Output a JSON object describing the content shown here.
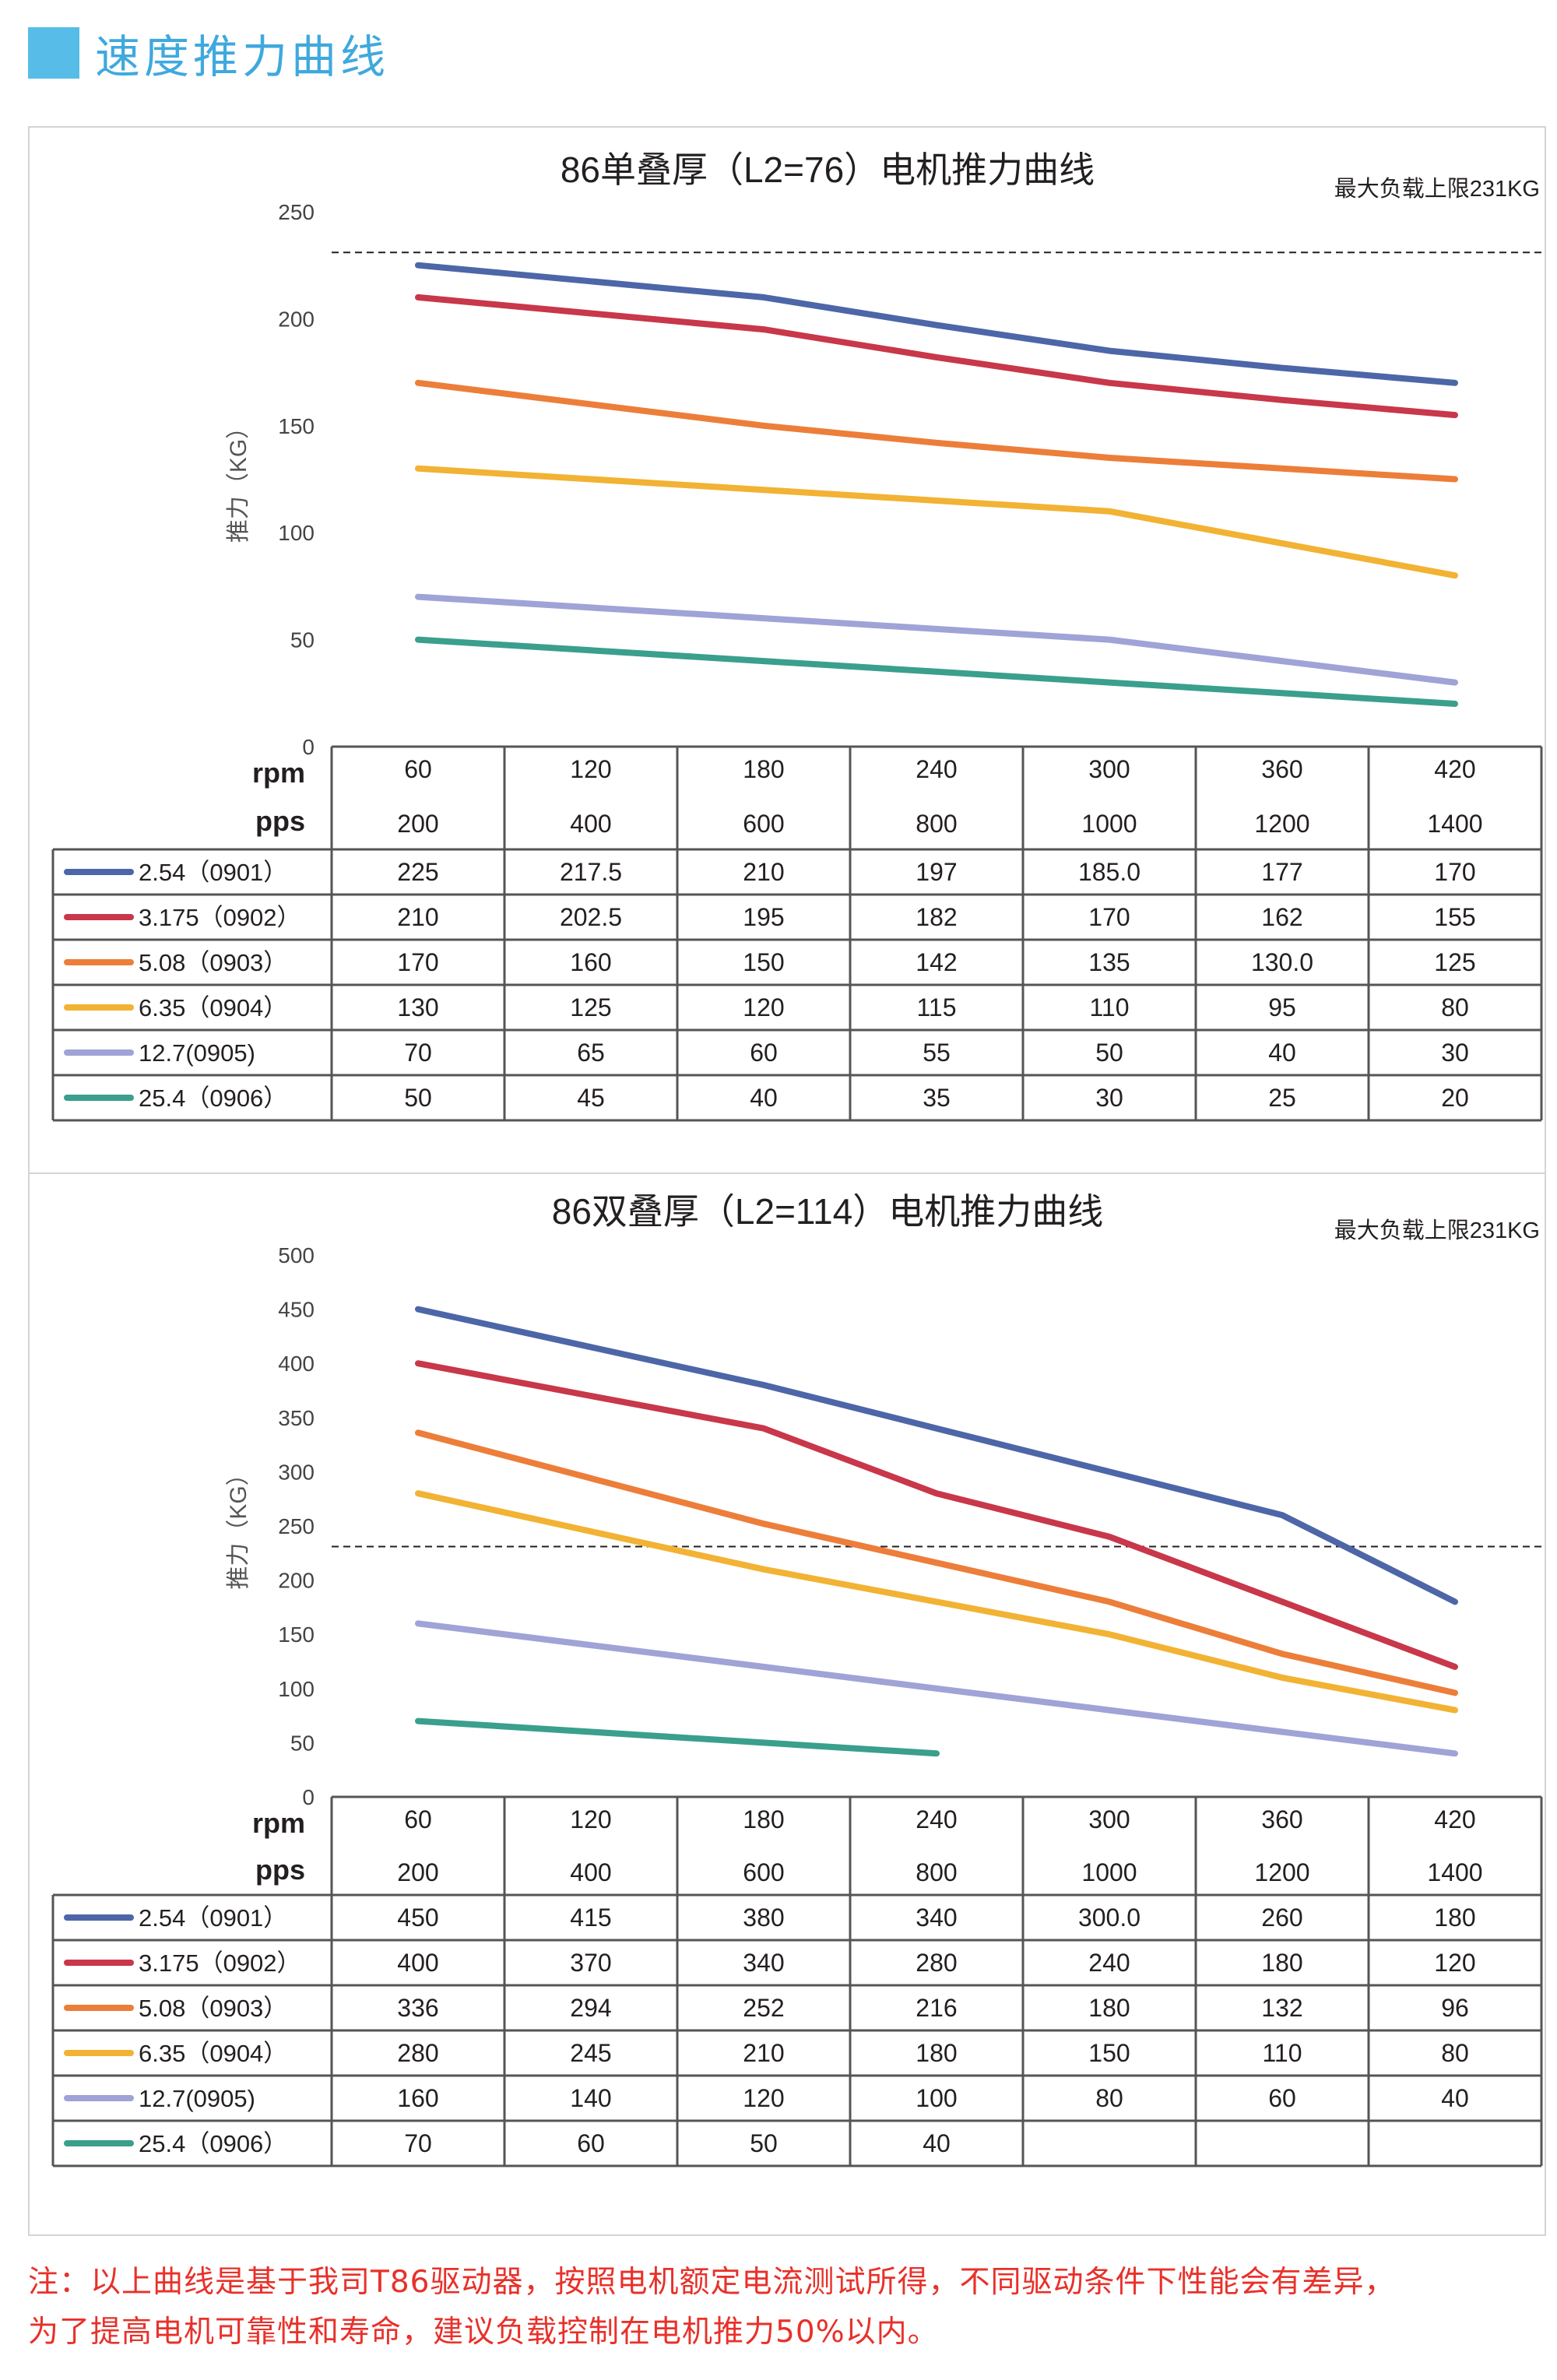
{
  "section_title": "速度推力曲线",
  "colors": {
    "header_accent": "#57bde8",
    "header_text": "#3fa9dd",
    "note_text": "#e8312a",
    "series": [
      "#4d66a8",
      "#c8374a",
      "#ec7e3a",
      "#f2b233",
      "#9fa3d6",
      "#3a9f8c"
    ]
  },
  "chart_data": [
    {
      "type": "line",
      "title": "86单叠厚（L2=76）电机推力曲线",
      "max_load_label": "最大负载上限231KG",
      "max_load": 231,
      "ylabel": "推力（KG）",
      "ylim": [
        0,
        250
      ],
      "yticks": [
        0,
        50,
        100,
        150,
        200,
        250
      ],
      "row_label_rpm": "rpm",
      "row_label_pps": "pps",
      "rpm": [
        "60",
        "120",
        "180",
        "240",
        "300",
        "360",
        "420"
      ],
      "pps": [
        "200",
        "400",
        "600",
        "800",
        "1000",
        "1200",
        "1400"
      ],
      "legend_position": "table-left",
      "series": [
        {
          "name": "2.54（0901）",
          "values": [
            225,
            217.5,
            210,
            197,
            185.0,
            177,
            170
          ],
          "labels": [
            "225",
            "217.5",
            "210",
            "197",
            "185.0",
            "177",
            "170"
          ]
        },
        {
          "name": "3.175（0902）",
          "values": [
            210,
            202.5,
            195,
            182,
            170,
            162,
            155
          ],
          "labels": [
            "210",
            "202.5",
            "195",
            "182",
            "170",
            "162",
            "155"
          ]
        },
        {
          "name": "5.08（0903）",
          "values": [
            170,
            160,
            150,
            142,
            135,
            130.0,
            125
          ],
          "labels": [
            "170",
            "160",
            "150",
            "142",
            "135",
            "130.0",
            "125"
          ]
        },
        {
          "name": "6.35（0904）",
          "values": [
            130,
            125,
            120,
            115,
            110,
            95,
            80
          ],
          "labels": [
            "130",
            "125",
            "120",
            "115",
            "110",
            "95",
            "80"
          ]
        },
        {
          "name": "12.7(0905)",
          "values": [
            70,
            65,
            60,
            55,
            50,
            40,
            30
          ],
          "labels": [
            "70",
            "65",
            "60",
            "55",
            "50",
            "40",
            "30"
          ]
        },
        {
          "name": "25.4（0906）",
          "values": [
            50,
            45,
            40,
            35,
            30,
            25,
            20
          ],
          "labels": [
            "50",
            "45",
            "40",
            "35",
            "30",
            "25",
            "20"
          ]
        }
      ]
    },
    {
      "type": "line",
      "title": "86双叠厚（L2=114）电机推力曲线",
      "max_load_label": "最大负载上限231KG",
      "max_load": 231,
      "ylabel": "推力（KG）",
      "ylim": [
        0,
        500
      ],
      "yticks": [
        0,
        50,
        100,
        150,
        200,
        250,
        300,
        350,
        400,
        450,
        500
      ],
      "row_label_rpm": "rpm",
      "row_label_pps": "pps",
      "rpm": [
        "60",
        "120",
        "180",
        "240",
        "300",
        "360",
        "420"
      ],
      "pps": [
        "200",
        "400",
        "600",
        "800",
        "1000",
        "1200",
        "1400"
      ],
      "legend_position": "table-left",
      "series": [
        {
          "name": "2.54（0901）",
          "values": [
            450,
            415,
            380,
            340,
            300.0,
            260,
            180
          ],
          "labels": [
            "450",
            "415",
            "380",
            "340",
            "300.0",
            "260",
            "180"
          ]
        },
        {
          "name": "3.175（0902）",
          "values": [
            400,
            370,
            340,
            280,
            240,
            180,
            120
          ],
          "labels": [
            "400",
            "370",
            "340",
            "280",
            "240",
            "180",
            "120"
          ]
        },
        {
          "name": "5.08（0903）",
          "values": [
            336,
            294,
            252,
            216,
            180,
            132,
            96
          ],
          "labels": [
            "336",
            "294",
            "252",
            "216",
            "180",
            "132",
            "96"
          ]
        },
        {
          "name": "6.35（0904）",
          "values": [
            280,
            245,
            210,
            180,
            150,
            110,
            80
          ],
          "labels": [
            "280",
            "245",
            "210",
            "180",
            "150",
            "110",
            "80"
          ]
        },
        {
          "name": "12.7(0905)",
          "values": [
            160,
            140,
            120,
            100,
            80,
            60,
            40
          ],
          "labels": [
            "160",
            "140",
            "120",
            "100",
            "80",
            "60",
            "40"
          ]
        },
        {
          "name": "25.4（0906）",
          "values": [
            70,
            60,
            50,
            40,
            null,
            null,
            null
          ],
          "labels": [
            "70",
            "60",
            "50",
            "40",
            "",
            "",
            ""
          ]
        }
      ]
    }
  ],
  "note": {
    "line1": "注：以上曲线是基于我司T86驱动器，按照电机额定电流测试所得，不同驱动条件下性能会有差异，",
    "line2": "为了提高电机可靠性和寿命，建议负载控制在电机推力50%以内。"
  }
}
